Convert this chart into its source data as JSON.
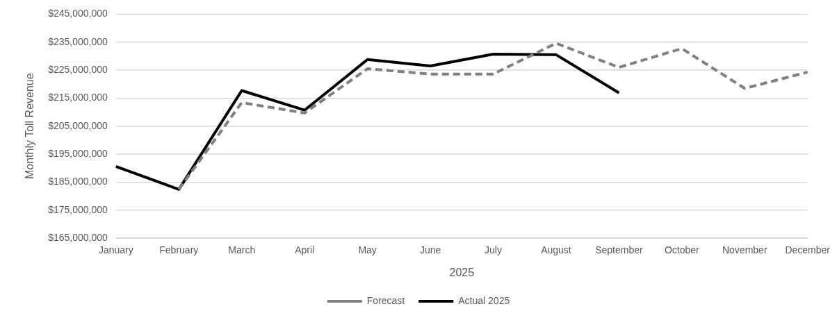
{
  "chart_data": {
    "type": "line",
    "xlabel": "2025",
    "ylabel": "Monthly Toll Revenue",
    "categories": [
      "January",
      "February",
      "March",
      "April",
      "May",
      "June",
      "July",
      "August",
      "September",
      "October",
      "November",
      "December"
    ],
    "series": [
      {
        "name": "Forecast",
        "color": "#808080",
        "line_style": "dashed",
        "values": [
          null,
          182400000,
          213400000,
          209700000,
          225500000,
          223600000,
          223600000,
          234600000,
          226000000,
          232700000,
          218500000,
          224300000
        ]
      },
      {
        "name": "Actual 2025",
        "color": "#000000",
        "line_style": "solid",
        "values": [
          190600000,
          182400000,
          217700000,
          210700000,
          228800000,
          226500000,
          230700000,
          230500000,
          216900000,
          null,
          null,
          null
        ]
      }
    ],
    "ylim": [
      165000000,
      245000000
    ],
    "yticks": [
      {
        "value": 165000000,
        "label": "$165,000,000"
      },
      {
        "value": 175000000,
        "label": "$175,000,000"
      },
      {
        "value": 185000000,
        "label": "$185,000,000"
      },
      {
        "value": 195000000,
        "label": "$195,000,000"
      },
      {
        "value": 205000000,
        "label": "$205,000,000"
      },
      {
        "value": 215000000,
        "label": "$215,000,000"
      },
      {
        "value": 225000000,
        "label": "$225,000,000"
      },
      {
        "value": 235000000,
        "label": "$235,000,000"
      },
      {
        "value": 245000000,
        "label": "$245,000,000"
      }
    ],
    "grid": "y",
    "legend": "bottom",
    "marker": "none"
  }
}
